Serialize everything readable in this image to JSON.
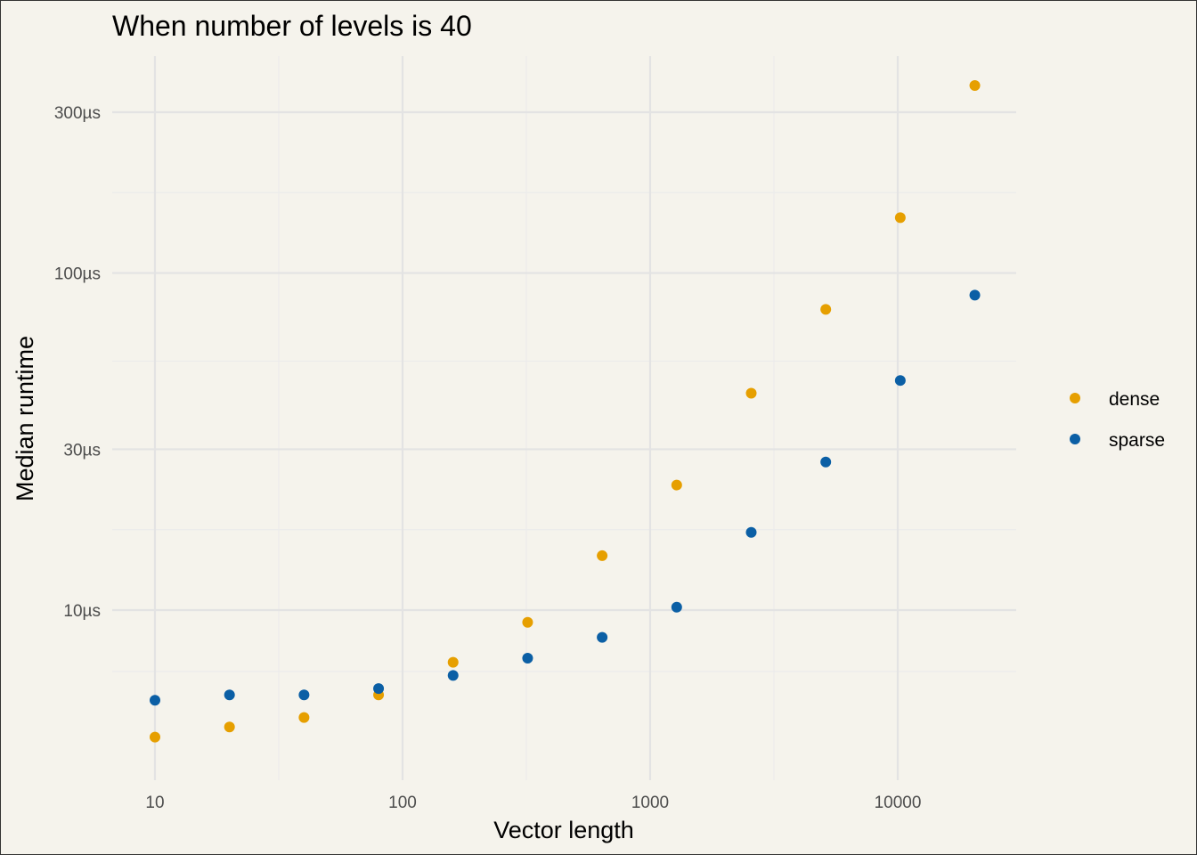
{
  "chart_data": {
    "type": "scatter",
    "title": "When number of levels is 40",
    "xlabel": "Vector length",
    "ylabel": "Median runtime",
    "x_scale": "log10",
    "y_scale": "log10",
    "xlim": [
      10,
      20480
    ],
    "ylim": [
      3.2e-06,
      0.0004
    ],
    "x_ticks": [
      10,
      100,
      1000,
      10000
    ],
    "x_tick_labels": [
      "10",
      "100",
      "1000",
      "10000"
    ],
    "y_ticks": [
      1e-05,
      3e-05,
      0.0001,
      0.0003
    ],
    "y_tick_labels": [
      "10µs",
      "30µs",
      "100µs",
      "300µs"
    ],
    "grid": true,
    "legend_position": "right",
    "x": [
      10,
      20,
      40,
      80,
      160,
      320,
      640,
      1280,
      2560,
      5120,
      10240,
      20480
    ],
    "series": [
      {
        "name": "dense",
        "color": "#e69f00",
        "values": [
          4.2e-06,
          4.5e-06,
          4.8e-06,
          5.6e-06,
          7e-06,
          9.2e-06,
          1.45e-05,
          2.35e-05,
          4.4e-05,
          7.8e-05,
          0.000146,
          0.00036
        ]
      },
      {
        "name": "sparse",
        "color": "#0b5fa5",
        "values": [
          5.4e-06,
          5.6e-06,
          5.6e-06,
          5.85e-06,
          6.4e-06,
          7.2e-06,
          8.3e-06,
          1.02e-05,
          1.7e-05,
          2.75e-05,
          4.8e-05,
          8.6e-05
        ]
      }
    ]
  }
}
